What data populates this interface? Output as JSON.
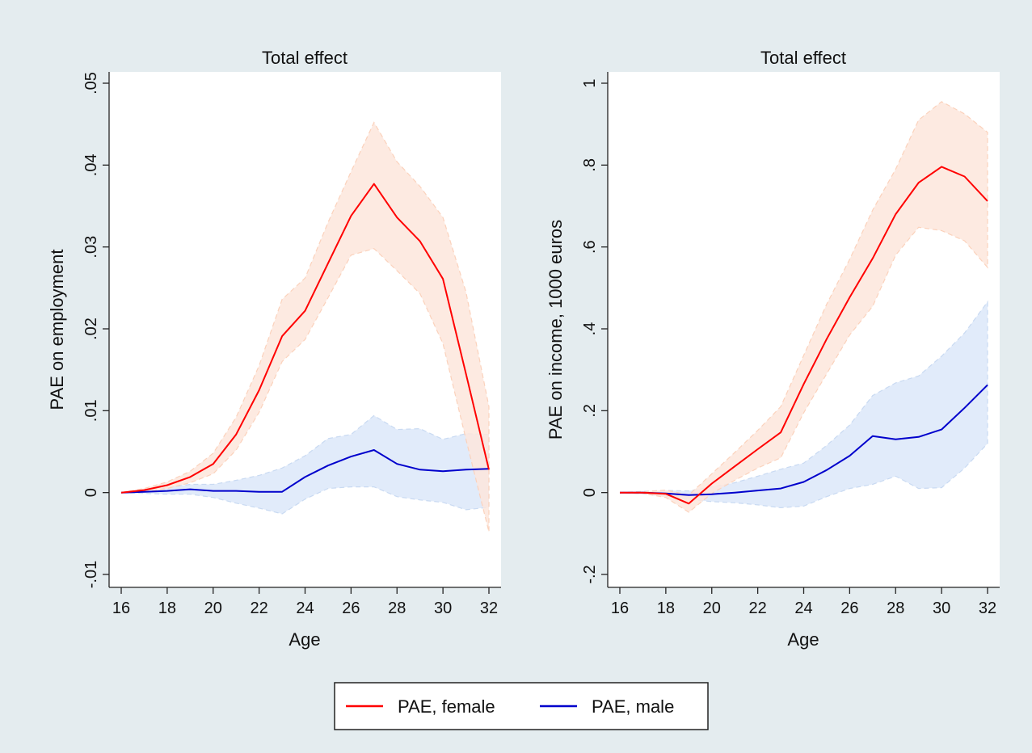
{
  "colors": {
    "outer_background": "#e4ecef",
    "plot_background": "#ffffff",
    "female_line": "#ff0000",
    "male_line": "#0000cc",
    "female_ci_fill": "#fde6dc",
    "female_ci_edge": "#fbd2bc",
    "male_ci_fill": "#dce8f9",
    "male_ci_edge": "#c9daf2"
  },
  "legend": {
    "placement": "bottom-center",
    "items": [
      {
        "label": "PAE, female",
        "color": "#ff0000"
      },
      {
        "label": "PAE, male",
        "color": "#0000cc"
      }
    ]
  },
  "chart_data": [
    {
      "type": "line",
      "title": "Total effect",
      "xlabel": "Age",
      "ylabel": "PAE on employment",
      "xlim": [
        16,
        32
      ],
      "ylim": [
        -0.01,
        0.05
      ],
      "xticks": [
        16,
        18,
        20,
        22,
        24,
        26,
        28,
        30,
        32
      ],
      "xtick_labels": [
        "16",
        "18",
        "20",
        "22",
        "24",
        "26",
        "28",
        "30",
        "32"
      ],
      "yticks": [
        -0.01,
        0,
        0.01,
        0.02,
        0.03,
        0.04,
        0.05
      ],
      "ytick_labels": [
        "-.01",
        "0",
        ".01",
        ".02",
        ".03",
        ".04",
        ".05"
      ],
      "grid": false,
      "x": [
        16,
        17,
        18,
        19,
        20,
        21,
        22,
        23,
        24,
        25,
        26,
        27,
        28,
        29,
        30,
        31,
        32
      ],
      "series": [
        {
          "name": "PAE, female",
          "values": [
            0,
            0.0003,
            0.0009,
            0.0019,
            0.0035,
            0.0071,
            0.0125,
            0.0191,
            0.0222,
            0.028,
            0.0338,
            0.0377,
            0.0336,
            0.0307,
            0.0261,
            0.0145,
            0.0028
          ],
          "ci_low": [
            0,
            0.0001,
            0.0005,
            0.0012,
            0.0023,
            0.0052,
            0.0098,
            0.016,
            0.0187,
            0.0238,
            0.029,
            0.0298,
            0.0271,
            0.0243,
            0.0182,
            0.0065,
            -0.0048
          ],
          "ci_high": [
            0,
            0.0005,
            0.0013,
            0.0026,
            0.0048,
            0.0092,
            0.0155,
            0.0236,
            0.0262,
            0.033,
            0.0392,
            0.0452,
            0.0404,
            0.0374,
            0.0336,
            0.0245,
            0.0105
          ]
        },
        {
          "name": "PAE, male",
          "values": [
            0,
            0.0001,
            0.0002,
            0.0004,
            0.0002,
            0.0002,
            0.0001,
            0.0001,
            0.0019,
            0.0033,
            0.0044,
            0.0052,
            0.0035,
            0.0028,
            0.0026,
            0.0028,
            0.0029
          ],
          "ci_low": [
            0,
            -0.0001,
            -0.0002,
            -0.0002,
            -0.0006,
            -0.0013,
            -0.0019,
            -0.0026,
            -0.0008,
            0.0005,
            0.0007,
            0.0007,
            -0.0005,
            -0.0009,
            -0.0012,
            -0.0021,
            -0.0018
          ],
          "ci_high": [
            0,
            0.0003,
            0.0006,
            0.001,
            0.001,
            0.0015,
            0.0021,
            0.003,
            0.0045,
            0.0066,
            0.0071,
            0.0094,
            0.0077,
            0.0078,
            0.0065,
            0.0072,
            0.0071
          ]
        }
      ]
    },
    {
      "type": "line",
      "title": "Total effect",
      "xlabel": "Age",
      "ylabel": "PAE on income, 1000 euros",
      "xlim": [
        16,
        32
      ],
      "ylim": [
        -0.2,
        1
      ],
      "xticks": [
        16,
        18,
        20,
        22,
        24,
        26,
        28,
        30,
        32
      ],
      "xtick_labels": [
        "16",
        "18",
        "20",
        "22",
        "24",
        "26",
        "28",
        "30",
        "32"
      ],
      "yticks": [
        -0.2,
        0,
        0.2,
        0.4,
        0.6,
        0.8,
        1
      ],
      "ytick_labels": [
        "-.2",
        "0",
        ".2",
        ".4",
        ".6",
        ".8",
        "1"
      ],
      "grid": false,
      "x": [
        16,
        17,
        18,
        19,
        20,
        21,
        22,
        23,
        24,
        25,
        26,
        27,
        28,
        29,
        30,
        31,
        32
      ],
      "series": [
        {
          "name": "PAE, female",
          "values": [
            0,
            0,
            -0.003,
            -0.027,
            0.022,
            0.064,
            0.106,
            0.147,
            0.265,
            0.375,
            0.477,
            0.572,
            0.68,
            0.757,
            0.796,
            0.772,
            0.712
          ],
          "ci_low": [
            0,
            -0.002,
            -0.012,
            -0.048,
            -0.002,
            0.03,
            0.06,
            0.085,
            0.195,
            0.29,
            0.385,
            0.455,
            0.58,
            0.648,
            0.64,
            0.615,
            0.55
          ],
          "ci_high": [
            0,
            0.002,
            0.006,
            -0.006,
            0.046,
            0.098,
            0.152,
            0.21,
            0.335,
            0.46,
            0.57,
            0.69,
            0.79,
            0.91,
            0.955,
            0.925,
            0.88
          ]
        },
        {
          "name": "PAE, male",
          "values": [
            0,
            0,
            -0.002,
            -0.006,
            -0.004,
            0,
            0.005,
            0.01,
            0.026,
            0.055,
            0.09,
            0.138,
            0.13,
            0.136,
            0.154,
            0.207,
            0.263
          ],
          "ci_low": [
            0,
            -0.003,
            -0.009,
            -0.017,
            -0.022,
            -0.025,
            -0.03,
            -0.037,
            -0.033,
            -0.01,
            0.01,
            0.02,
            0.04,
            0.01,
            0.012,
            0.06,
            0.12
          ],
          "ci_high": [
            0,
            0.003,
            0.005,
            0.004,
            0.014,
            0.024,
            0.04,
            0.057,
            0.072,
            0.115,
            0.165,
            0.237,
            0.268,
            0.285,
            0.333,
            0.39,
            0.466
          ]
        }
      ]
    }
  ]
}
